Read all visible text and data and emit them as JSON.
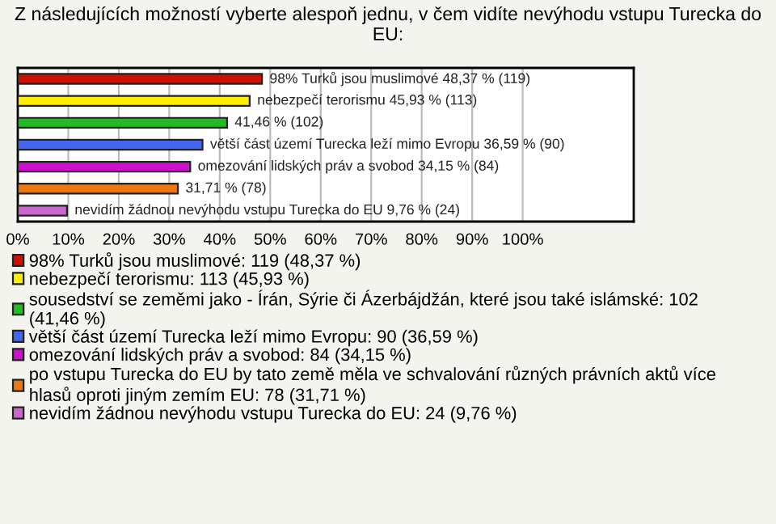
{
  "chart_data": {
    "type": "bar",
    "orientation": "horizontal",
    "title": "Z následujících možností vyberte alespoň jednu, v čem vidíte nevýhodu vstupu Turecka do EU:",
    "categories": [
      null,
      null,
      null,
      null,
      null,
      null,
      null
    ],
    "series": [
      {
        "name": "98% Turků jsou muslimové: 119 (48,37 %)",
        "color": "#cc1100",
        "values": [
          48.37,
          null,
          null,
          null,
          null,
          null,
          null
        ],
        "value_labels": [
          "98% Turků jsou muslimové 48,37 % (119)",
          null,
          null,
          null,
          null,
          null,
          null
        ]
      },
      {
        "name": "nebezpečí terorismu: 113 (45,93 %)",
        "color": "#ffee00",
        "values": [
          null,
          45.93,
          null,
          null,
          null,
          null,
          null
        ],
        "value_labels": [
          null,
          "nebezpečí terorismu 45,93 % (113)",
          null,
          null,
          null,
          null,
          null
        ]
      },
      {
        "name": "sousedství se zeměmi jako - Írán, Sýrie či Ázerbájdžán, které jsou také islámské: 102 (41,46 %)",
        "color": "#22bb22",
        "values": [
          null,
          null,
          41.46,
          null,
          null,
          null,
          null
        ],
        "value_labels": [
          null,
          null,
          "41,46 % (102)",
          null,
          null,
          null,
          null
        ]
      },
      {
        "name": "větší část území Turecka leží mimo Evropu: 90 (36,59 %)",
        "color": "#4466ee",
        "values": [
          null,
          null,
          null,
          36.59,
          null,
          null,
          null
        ],
        "value_labels": [
          null,
          null,
          null,
          "větší část území Turecka leží mimo Evropu 36,59 % (90)",
          null,
          null,
          null
        ]
      },
      {
        "name": "omezování lidských práv a svobod: 84 (34,15 %)",
        "color": "#cc11cc",
        "values": [
          null,
          null,
          null,
          null,
          34.15,
          null,
          null
        ],
        "value_labels": [
          null,
          null,
          null,
          null,
          "omezování lidských práv a svobod 34,15 % (84)",
          null,
          null
        ]
      },
      {
        "name": "po vstupu Turecka do EU by tato země měla ve schvalování různých právních aktů více hlasů oproti jiným zemím EU: 78 (31,71 %)",
        "color": "#ee7711",
        "values": [
          null,
          null,
          null,
          null,
          null,
          31.71,
          null
        ],
        "value_labels": [
          null,
          null,
          null,
          null,
          null,
          "31,71 % (78)",
          null
        ]
      },
      {
        "name": "nevidím žádnou nevýhodu vstupu Turecka do EU: 24 (9,76 %)",
        "color": "#cc66cc",
        "values": [
          null,
          null,
          null,
          null,
          null,
          null,
          9.76
        ],
        "value_labels": [
          null,
          null,
          null,
          null,
          null,
          null,
          "nevidím žádnou nevýhodu vstupu Turecka do EU 9,76 % (24)"
        ]
      }
    ],
    "xlim": [
      0,
      122
    ],
    "xticks": [
      {
        "value": 0,
        "label": "0%"
      },
      {
        "value": 10,
        "label": "10%"
      },
      {
        "value": 20,
        "label": "20%"
      },
      {
        "value": 30,
        "label": "30%"
      },
      {
        "value": 40,
        "label": "40%"
      },
      {
        "value": 50,
        "label": "50%"
      },
      {
        "value": 60,
        "label": "60%"
      },
      {
        "value": 70,
        "label": "70%"
      },
      {
        "value": 80,
        "label": "80%"
      },
      {
        "value": 90,
        "label": "90%"
      },
      {
        "value": 100,
        "label": "100%"
      }
    ],
    "grid": "x",
    "legend": "bottom"
  }
}
